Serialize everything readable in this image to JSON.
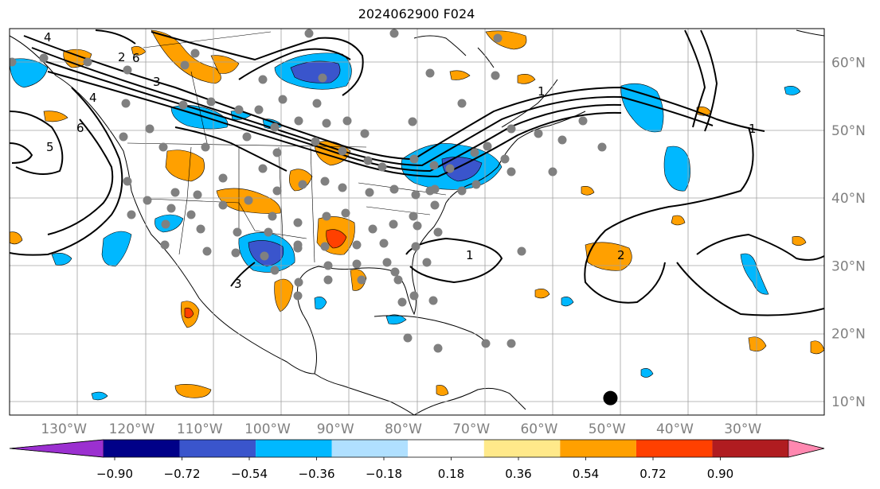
{
  "title": "2024062900 F024",
  "map": {
    "projection": "equirectangular",
    "lon_range": [
      -138,
      -18
    ],
    "lat_range": [
      8,
      65
    ],
    "lon_ticks": [
      -130,
      -120,
      -110,
      -100,
      -90,
      -80,
      -70,
      -60,
      -50,
      -40,
      -30
    ],
    "lon_labels": [
      "130°W",
      "120°W",
      "110°W",
      "100°W",
      "90°W",
      "80°W",
      "70°W",
      "60°W",
      "50°W",
      "40°W",
      "30°W"
    ],
    "lat_ticks": [
      10,
      20,
      30,
      40,
      50,
      60
    ],
    "lat_labels": [
      "10°N",
      "20°N",
      "30°N",
      "40°N",
      "50°N",
      "60°N"
    ],
    "grid": true,
    "contour_labels": [
      "4",
      "6",
      "3",
      "4",
      "6",
      "5",
      "1",
      "2",
      "3",
      "1",
      "2",
      "1"
    ],
    "marker": {
      "lon": -49.5,
      "lat": 10.5,
      "color": "#000000"
    }
  },
  "colorbar": {
    "tick_labels": [
      "−0.90",
      "−0.72",
      "−0.54",
      "−0.36",
      "−0.18",
      "0.18",
      "0.36",
      "0.54",
      "0.72",
      "0.90"
    ],
    "colors": [
      "#9b30d0",
      "#000088",
      "#3a55cc",
      "#00b8ff",
      "#b0e0ff",
      "#ffffff",
      "#ffe98a",
      "#ffa000",
      "#ff4000",
      "#b01c20",
      "#ff88b0"
    ]
  },
  "colors": {
    "neg_light": "#00b8ff",
    "neg_mid": "#3a55cc",
    "pos_light": "#ffa000",
    "pos_strong": "#ff4000",
    "station": "#808080",
    "grid": "#a0a0a0"
  }
}
